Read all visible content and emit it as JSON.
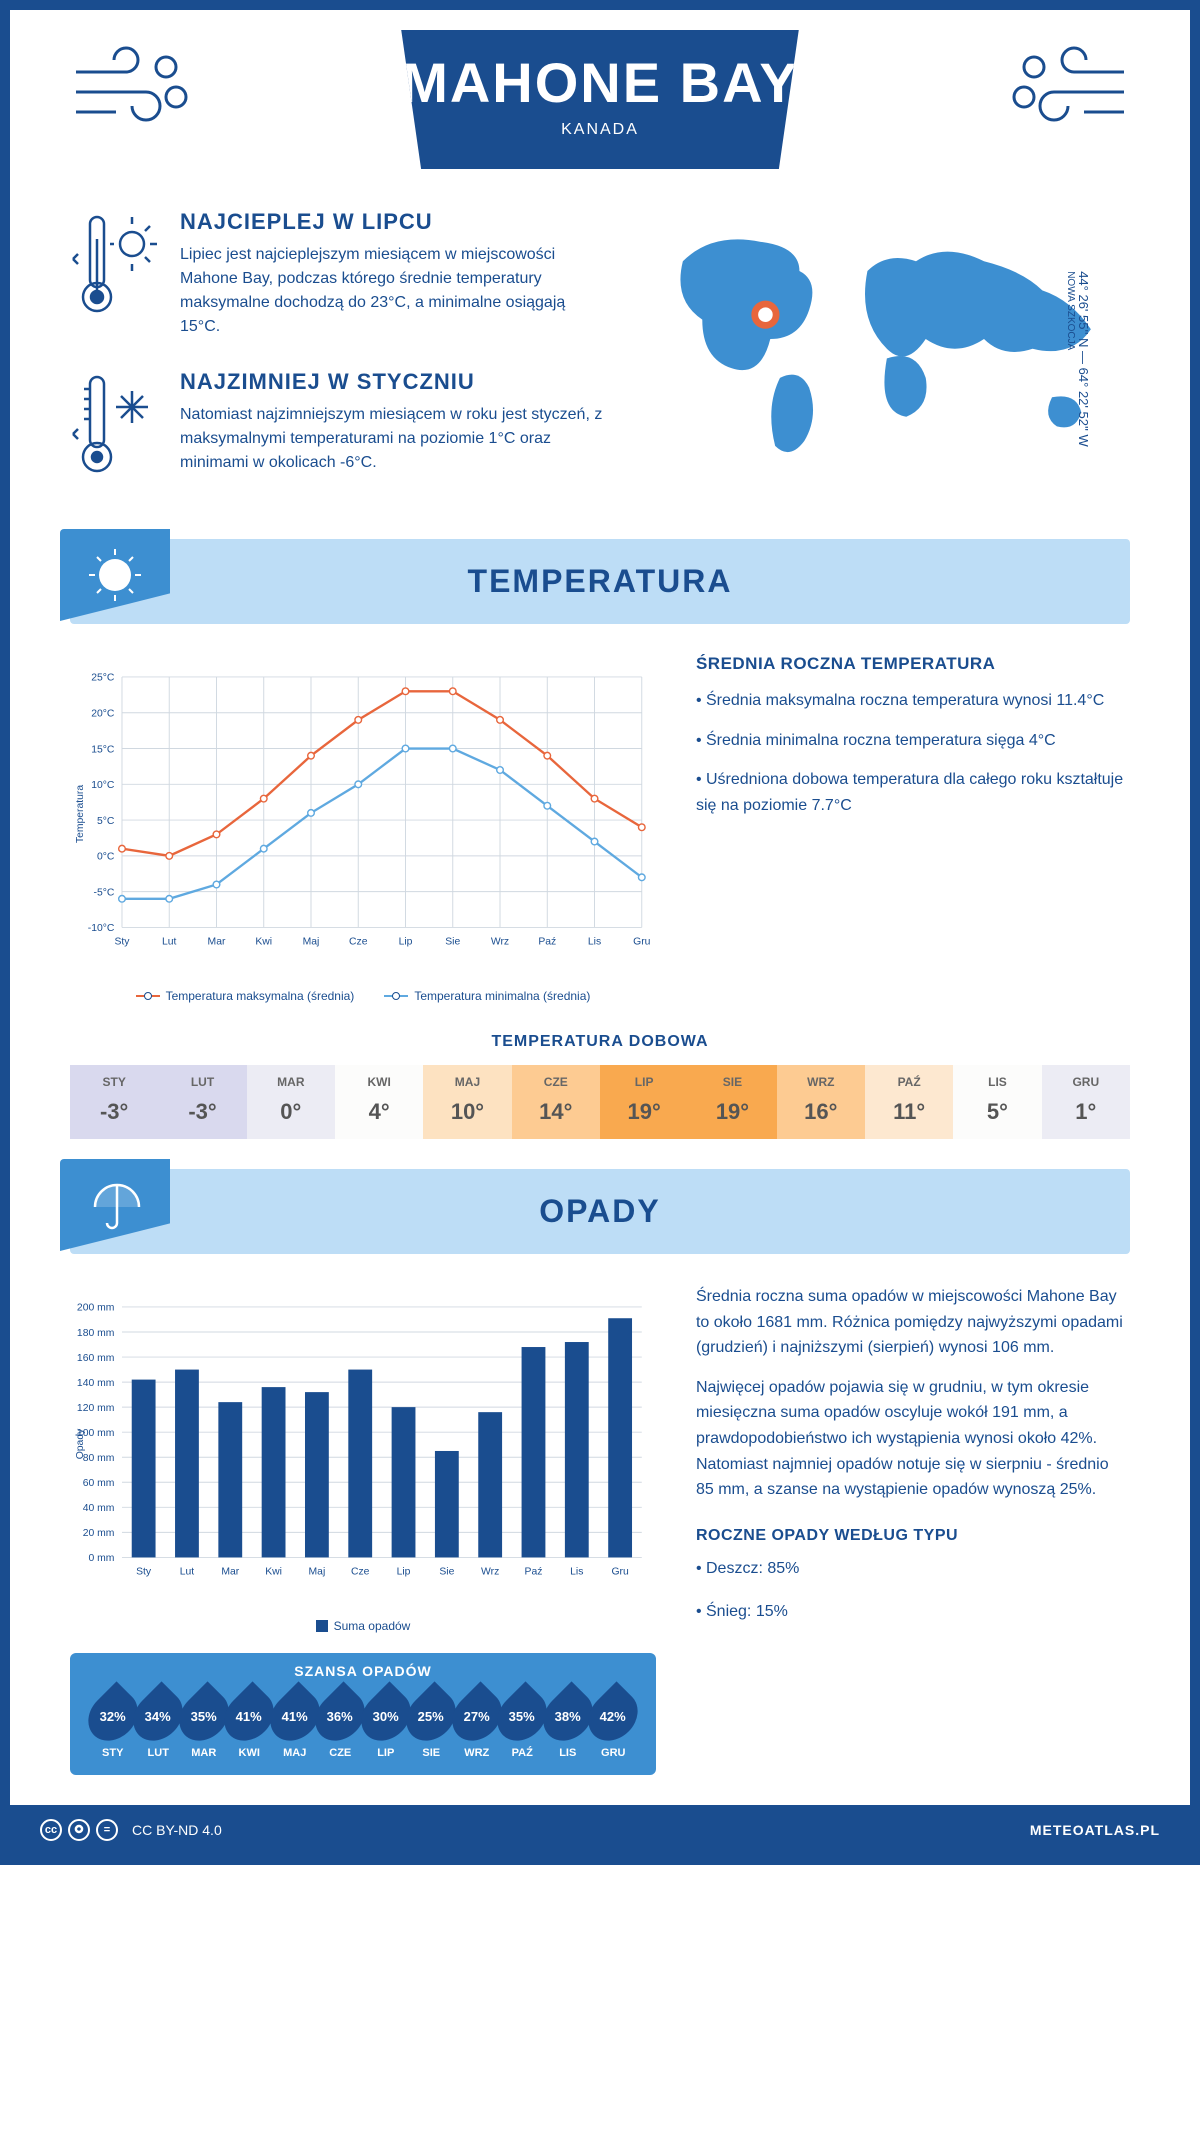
{
  "header": {
    "title": "MAHONE BAY",
    "subtitle": "KANADA"
  },
  "coords": {
    "line1": "44° 26' 55'' N — 64° 22' 52'' W",
    "region": "NOWA SZKOCJA"
  },
  "warmest": {
    "title": "NAJCIEPLEJ W LIPCU",
    "text": "Lipiec jest najcieplejszym miesiącem w miejscowości Mahone Bay, podczas którego średnie temperatury maksymalne dochodzą do 23°C, a minimalne osiągają 15°C."
  },
  "coldest": {
    "title": "NAJZIMNIEJ W STYCZNIU",
    "text": "Natomiast najzimniejszym miesiącem w roku jest styczeń, z maksymalnymi temperaturami na poziomie 1°C oraz minimami w okolicach -6°C."
  },
  "temp_section_title": "TEMPERATURA",
  "temp_side": {
    "heading": "ŚREDNIA ROCZNA TEMPERATURA",
    "b1": "• Średnia maksymalna roczna temperatura wynosi 11.4°C",
    "b2": "• Średnia minimalna roczna temperatura sięga 4°C",
    "b3": "• Uśredniona dobowa temperatura dla całego roku kształtuje się na poziomie 7.7°C"
  },
  "temp_chart": {
    "type": "line",
    "months": [
      "Sty",
      "Lut",
      "Mar",
      "Kwi",
      "Maj",
      "Cze",
      "Lip",
      "Sie",
      "Wrz",
      "Paź",
      "Lis",
      "Gru"
    ],
    "max": [
      1,
      0,
      3,
      8,
      14,
      19,
      23,
      23,
      19,
      14,
      8,
      4
    ],
    "min": [
      -6,
      -6,
      -4,
      1,
      6,
      10,
      15,
      15,
      12,
      7,
      2,
      -3
    ],
    "max_color": "#e8663c",
    "min_color": "#5fa9e0",
    "grid_color": "#d0d8e0",
    "ylim": [
      -10,
      25
    ],
    "ytick_step": 5,
    "ylabel": "Temperatura",
    "legend_max": "Temperatura maksymalna (średnia)",
    "legend_min": "Temperatura minimalna (średnia)"
  },
  "dobowa": {
    "title": "TEMPERATURA DOBOWA",
    "months": [
      "STY",
      "LUT",
      "MAR",
      "KWI",
      "MAJ",
      "CZE",
      "LIP",
      "SIE",
      "WRZ",
      "PAŹ",
      "LIS",
      "GRU"
    ],
    "values": [
      "-3°",
      "-3°",
      "0°",
      "4°",
      "10°",
      "14°",
      "19°",
      "19°",
      "16°",
      "11°",
      "5°",
      "1°"
    ],
    "colors": [
      "#d9d9ee",
      "#d9d9ee",
      "#ececf4",
      "#fcfcfb",
      "#fde2c1",
      "#fdcb92",
      "#f9a94f",
      "#f9a94f",
      "#fdcb92",
      "#fde8d0",
      "#fcfcfb",
      "#ececf4"
    ]
  },
  "opady_section_title": "OPADY",
  "opady_chart": {
    "type": "bar",
    "months": [
      "Sty",
      "Lut",
      "Mar",
      "Kwi",
      "Maj",
      "Cze",
      "Lip",
      "Sie",
      "Wrz",
      "Paź",
      "Lis",
      "Gru"
    ],
    "values": [
      142,
      150,
      124,
      136,
      132,
      150,
      120,
      85,
      116,
      168,
      172,
      191
    ],
    "bar_color": "#1a4d8f",
    "grid_color": "#d0d8e0",
    "ylim": [
      0,
      200
    ],
    "ytick_step": 20,
    "ylabel": "Opady",
    "legend": "Suma opadów"
  },
  "opady_text": {
    "p1": "Średnia roczna suma opadów w miejscowości Mahone Bay to około 1681 mm. Różnica pomiędzy najwyższymi opadami (grudzień) i najniższymi (sierpień) wynosi 106 mm.",
    "p2": "Najwięcej opadów pojawia się w grudniu, w tym okresie miesięczna suma opadów oscyluje wokół 191 mm, a prawdopodobieństwo ich wystąpienia wynosi około 42%. Natomiast najmniej opadów notuje się w sierpniu - średnio 85 mm, a szanse na wystąpienie opadów wynoszą 25%."
  },
  "szansa": {
    "title": "SZANSA OPADÓW",
    "months": [
      "STY",
      "LUT",
      "MAR",
      "KWI",
      "MAJ",
      "CZE",
      "LIP",
      "SIE",
      "WRZ",
      "PAŹ",
      "LIS",
      "GRU"
    ],
    "values": [
      "32%",
      "34%",
      "35%",
      "41%",
      "41%",
      "36%",
      "30%",
      "25%",
      "27%",
      "35%",
      "38%",
      "42%"
    ]
  },
  "roczne": {
    "heading": "ROCZNE OPADY WEDŁUG TYPU",
    "rain": "• Deszcz: 85%",
    "snow": "• Śnieg: 15%"
  },
  "footer": {
    "license": "CC BY-ND 4.0",
    "site": "METEOATLAS.PL"
  }
}
